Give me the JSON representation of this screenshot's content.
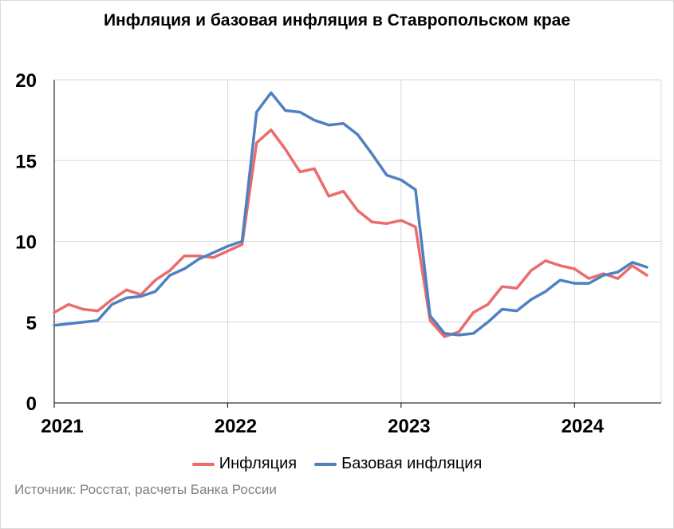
{
  "chart_data": {
    "type": "line",
    "title": "Инфляция и базовая инфляция в Ставропольском крае",
    "xlabel": "",
    "ylabel": "",
    "ylim": [
      0,
      20
    ],
    "xlim": [
      2021,
      2024.5
    ],
    "yticks": [
      "0",
      "5",
      "10",
      "15",
      "20"
    ],
    "xticks": [
      "2021",
      "2022",
      "2023",
      "2024"
    ],
    "xtick_values": [
      2021,
      2022,
      2023,
      2024
    ],
    "grid": true,
    "legend": "bottom",
    "x": [
      2021.0,
      2021.083,
      2021.167,
      2021.25,
      2021.333,
      2021.417,
      2021.5,
      2021.583,
      2021.667,
      2021.75,
      2021.833,
      2021.917,
      2022.0,
      2022.083,
      2022.167,
      2022.25,
      2022.333,
      2022.417,
      2022.5,
      2022.583,
      2022.667,
      2022.75,
      2022.833,
      2022.917,
      2023.0,
      2023.083,
      2023.167,
      2023.25,
      2023.333,
      2023.417,
      2023.5,
      2023.583,
      2023.667,
      2023.75,
      2023.833,
      2023.917,
      2024.0,
      2024.083,
      2024.167,
      2024.25,
      2024.333,
      2024.417
    ],
    "series": [
      {
        "name": "Инфляция",
        "color": "#ec6b6b",
        "values": [
          5.6,
          6.1,
          5.8,
          5.7,
          6.4,
          7.0,
          6.7,
          7.6,
          8.2,
          9.1,
          9.1,
          9.0,
          9.4,
          9.8,
          16.1,
          16.9,
          15.7,
          14.3,
          14.5,
          12.8,
          13.1,
          11.9,
          11.2,
          11.1,
          11.3,
          10.9,
          5.1,
          4.1,
          4.4,
          5.6,
          6.1,
          7.2,
          7.1,
          8.2,
          8.8,
          8.5,
          8.3,
          7.7,
          8.0,
          7.7,
          8.5,
          7.9
        ]
      },
      {
        "name": "Базовая инфляция",
        "color": "#4f81c0",
        "values": [
          4.8,
          4.9,
          5.0,
          5.1,
          6.1,
          6.5,
          6.6,
          6.9,
          7.9,
          8.3,
          8.9,
          9.3,
          9.7,
          10.0,
          18.0,
          19.2,
          18.1,
          18.0,
          17.5,
          17.2,
          17.3,
          16.6,
          15.4,
          14.1,
          13.8,
          13.2,
          5.4,
          4.3,
          4.2,
          4.3,
          5.0,
          5.8,
          5.7,
          6.4,
          6.9,
          7.6,
          7.4,
          7.4,
          7.9,
          8.1,
          8.7,
          8.4
        ]
      }
    ]
  },
  "source_text": "Источник: Росстат, расчеты Банка России"
}
